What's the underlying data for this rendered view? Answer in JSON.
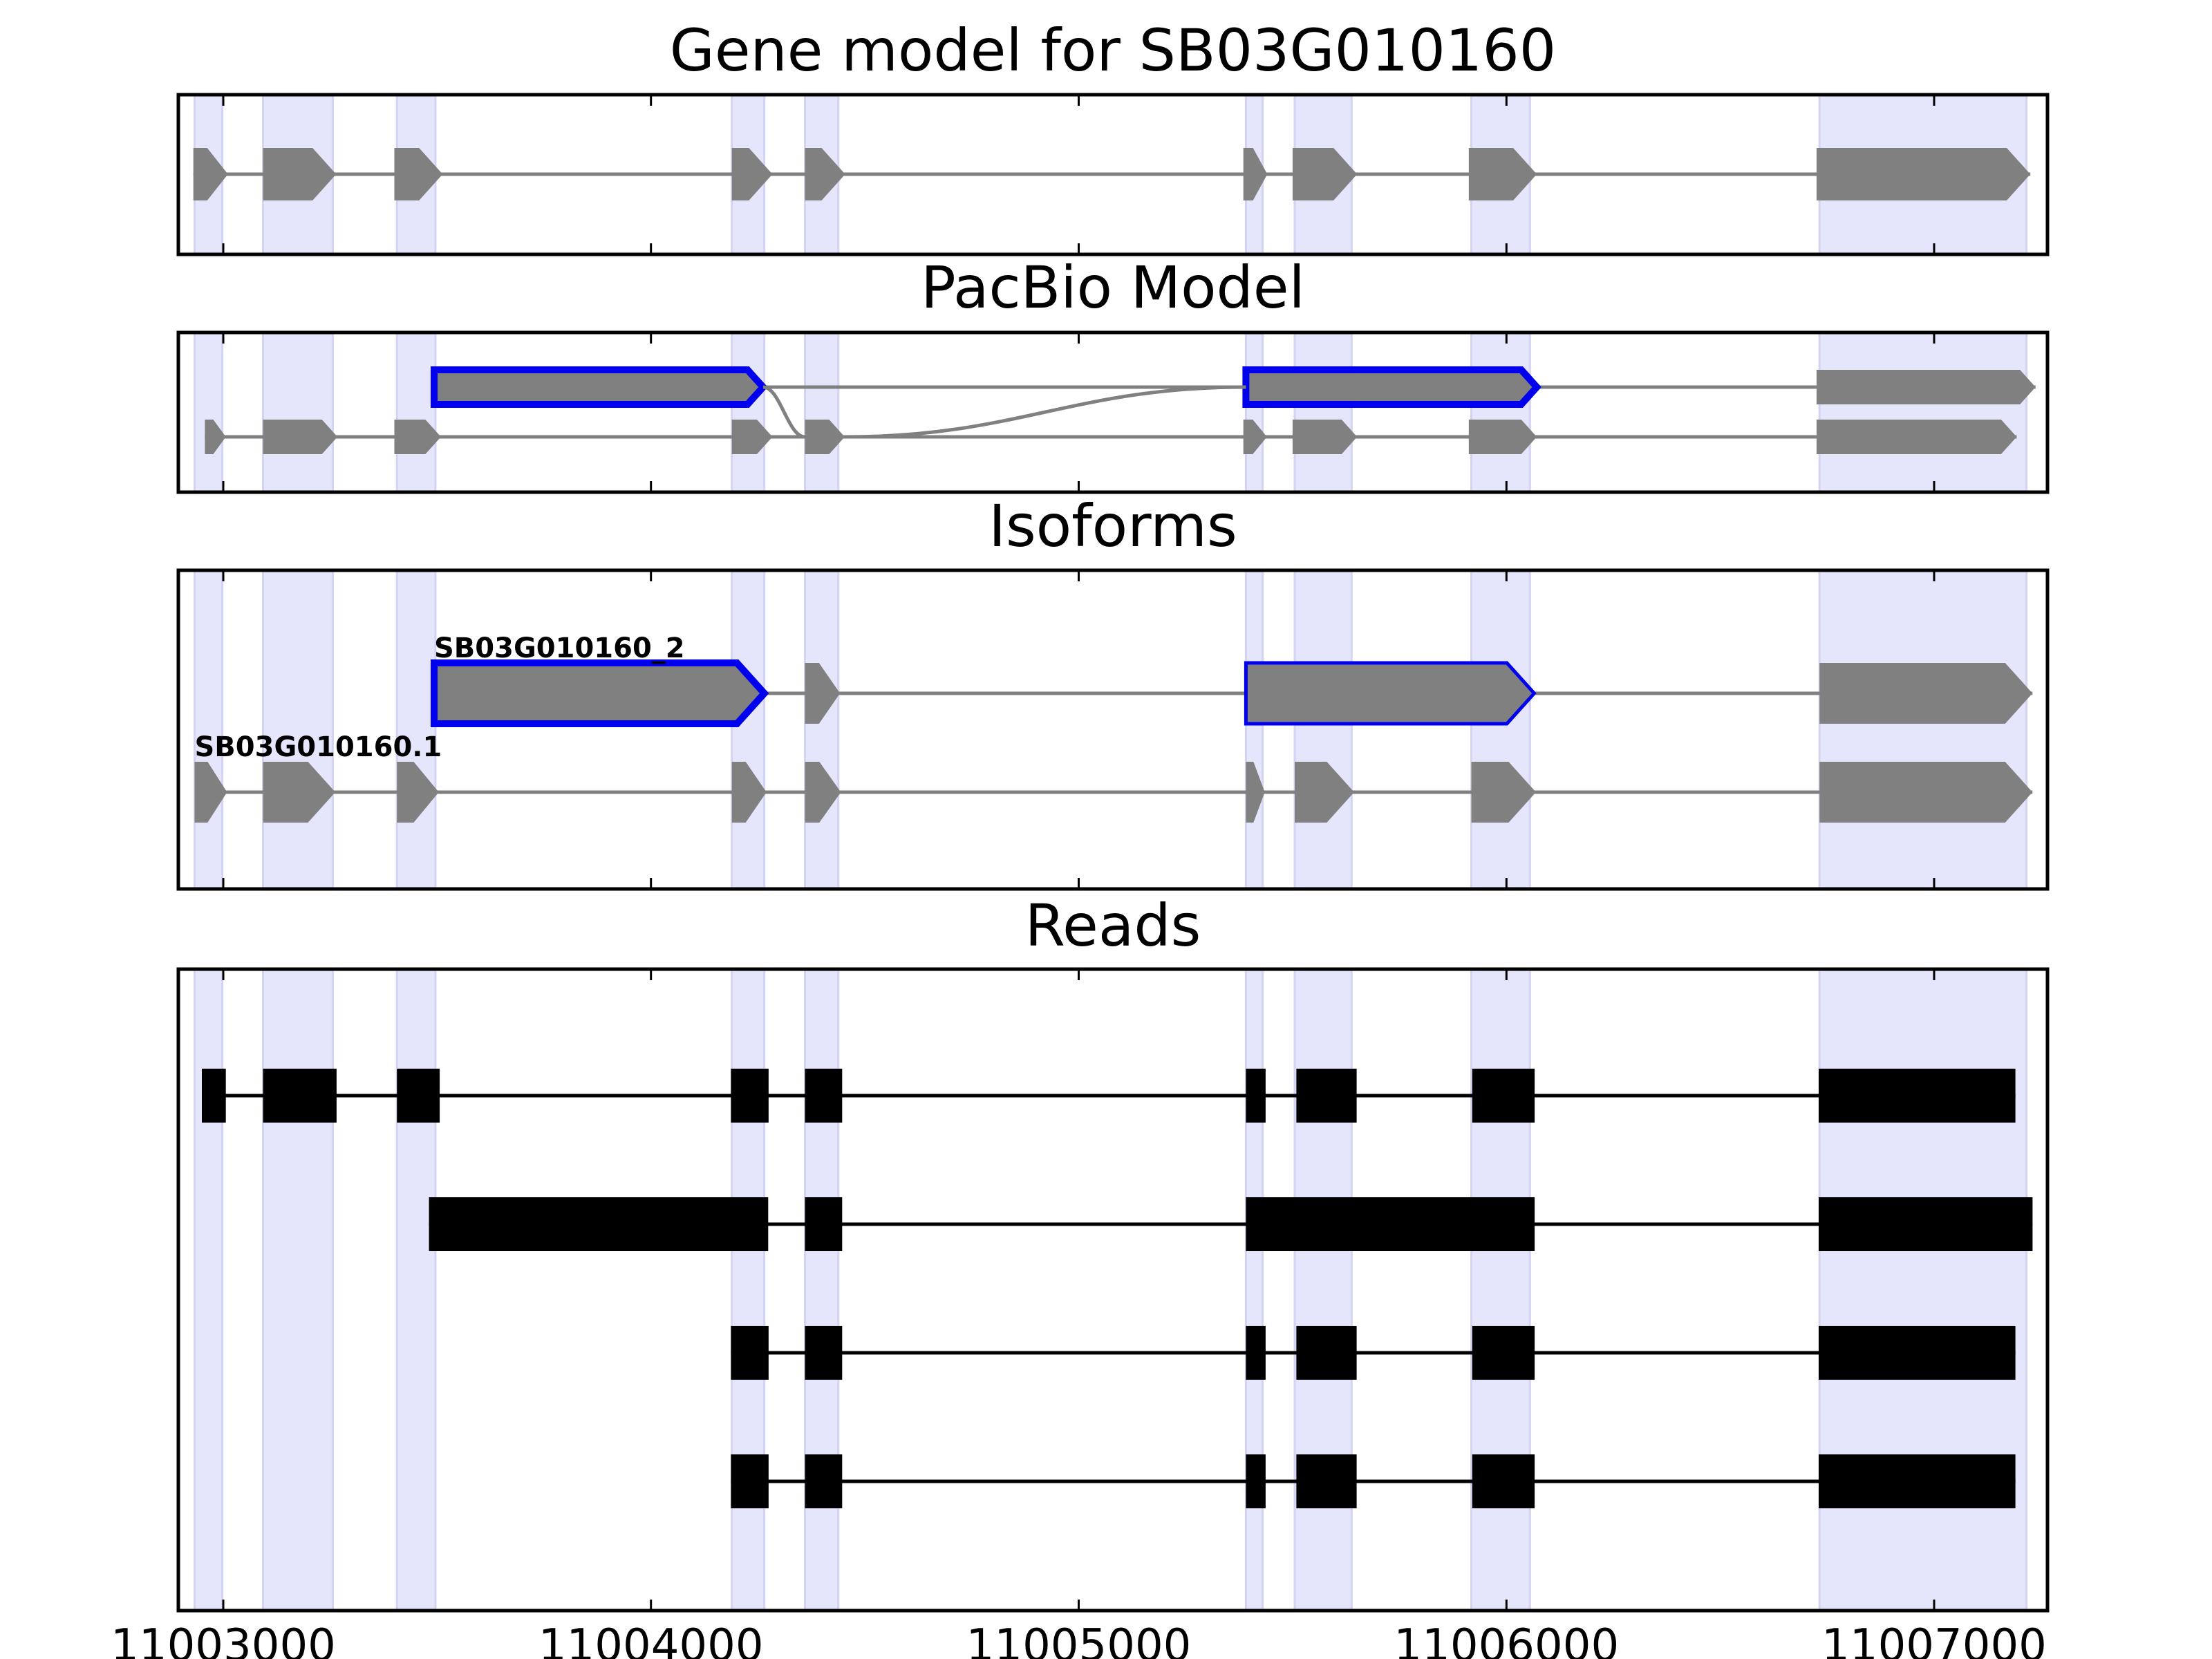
{
  "chart_data": {
    "type": "gene-model",
    "x_ticks": [
      11003000,
      11004000,
      11005000,
      11006000,
      11007000
    ],
    "xlim": [
      10999770,
      11003120
    ],
    "colors": {
      "band": "#e5e5fb",
      "band_edge": "#d3d3f2",
      "exon": "#808080",
      "intron": "#808080",
      "highlight": "#0000ee",
      "read": "#000000"
    },
    "shared_exon_bands": [
      [
        11002933,
        11002998
      ],
      [
        11003093,
        11003256
      ],
      [
        11003406,
        11003496
      ],
      [
        11004189,
        11004265
      ],
      [
        11004360,
        11004438
      ],
      [
        11005391,
        11005430
      ],
      [
        11005505,
        11005638
      ],
      [
        11005918,
        11006055
      ],
      [
        11006732,
        11007216
      ]
    ],
    "panels": [
      {
        "id": "gene-model",
        "title": "Gene model for SB03G010160",
        "tracks": [
          {
            "label": "",
            "highlighted_exons": [],
            "exons": [
              [
                11002930,
                11003011
              ],
              [
                11003093,
                11003264
              ],
              [
                11003400,
                11003513
              ],
              [
                11004189,
                11004284
              ],
              [
                11004360,
                11004454
              ],
              [
                11005385,
                11005441
              ],
              [
                11005500,
                11005651
              ],
              [
                11005912,
                11006071
              ],
              [
                11006725,
                11007225
              ]
            ]
          }
        ]
      },
      {
        "id": "pacbio-model",
        "title": "PacBio Model",
        "tracks": [
          {
            "label": "",
            "highlighted_exons": [
              0,
              1
            ],
            "exons": [
              [
                11003493,
                11004262
              ],
              [
                11005391,
                11006071
              ],
              [
                11006725,
                11007237
              ]
            ]
          },
          {
            "label": "",
            "highlighted_exons": [],
            "exons": [
              [
                11002957,
                11003006
              ],
              [
                11003093,
                11003267
              ],
              [
                11003400,
                11003509
              ],
              [
                11004189,
                11004284
              ],
              [
                11004360,
                11004453
              ],
              [
                11005385,
                11005440
              ],
              [
                11005500,
                11005651
              ],
              [
                11005912,
                11006071
              ],
              [
                11006725,
                11007193
              ]
            ]
          }
        ]
      },
      {
        "id": "isoforms",
        "title": "Isoforms",
        "tracks": [
          {
            "label": "SB03G010160_2",
            "highlighted_exons": [
              0,
              2
            ],
            "exons": [
              [
                11003493,
                11004265
              ],
              [
                11004360,
                11004442
              ],
              [
                11005391,
                11006065
              ],
              [
                11006732,
                11007230
              ]
            ]
          },
          {
            "label": "SB03G010160.1",
            "highlighted_exons": [],
            "exons": [
              [
                11002933,
                11003009
              ],
              [
                11003093,
                11003262
              ],
              [
                11003406,
                11003504
              ],
              [
                11004189,
                11004270
              ],
              [
                11004360,
                11004444
              ],
              [
                11005391,
                11005435
              ],
              [
                11005505,
                11005644
              ],
              [
                11005918,
                11006069
              ],
              [
                11006732,
                11007230
              ]
            ]
          }
        ]
      },
      {
        "id": "reads",
        "title": "Reads",
        "tracks": [
          {
            "label": "",
            "exons": [
              [
                11002950,
                11003006
              ],
              [
                11003093,
                11003265
              ],
              [
                11003406,
                11003506
              ],
              [
                11004187,
                11004275
              ],
              [
                11004360,
                11004447
              ],
              [
                11005391,
                11005437
              ],
              [
                11005509,
                11005650
              ],
              [
                11005920,
                11006066
              ],
              [
                11006730,
                11007190
              ]
            ]
          },
          {
            "label": "",
            "exons": [
              [
                11003481,
                11004274
              ],
              [
                11004360,
                11004447
              ],
              [
                11005391,
                11006066
              ],
              [
                11006730,
                11007230
              ]
            ]
          },
          {
            "label": "",
            "exons": [
              [
                11004187,
                11004275
              ],
              [
                11004360,
                11004447
              ],
              [
                11005391,
                11005437
              ],
              [
                11005509,
                11005650
              ],
              [
                11005920,
                11006066
              ],
              [
                11006730,
                11007190
              ]
            ]
          },
          {
            "label": "",
            "exons": [
              [
                11004187,
                11004275
              ],
              [
                11004360,
                11004447
              ],
              [
                11005391,
                11005437
              ],
              [
                11005509,
                11005650
              ],
              [
                11005920,
                11006066
              ],
              [
                11006730,
                11007190
              ]
            ]
          }
        ]
      }
    ]
  }
}
